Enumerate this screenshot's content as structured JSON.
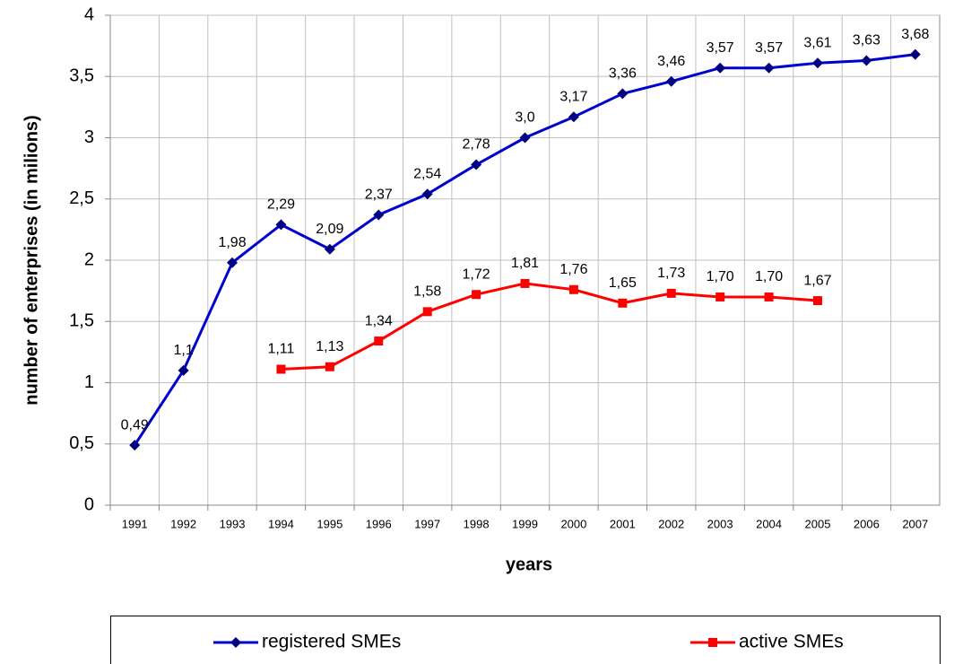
{
  "chart_data": {
    "type": "line",
    "x_label": "years",
    "y_label": "number of enterprises (in milions)",
    "categories": [
      "1991",
      "1992",
      "1993",
      "1994",
      "1995",
      "1996",
      "1997",
      "1998",
      "1999",
      "2000",
      "2001",
      "2002",
      "2003",
      "2004",
      "2005",
      "2006",
      "2007"
    ],
    "series": [
      {
        "name": "registered SMEs",
        "color": "#0000cc",
        "marker": "diamond",
        "marker_color": "#000080",
        "values": [
          0.49,
          1.1,
          1.98,
          2.29,
          2.09,
          2.37,
          2.54,
          2.78,
          3.0,
          3.17,
          3.36,
          3.46,
          3.57,
          3.57,
          3.61,
          3.63,
          3.68
        ],
        "value_labels": [
          "0,49",
          "1,1",
          "1,98",
          "2,29",
          "2,09",
          "2,37",
          "2,54",
          "2,78",
          "3,0",
          "3,17",
          "3,36",
          "3,46",
          "3,57",
          "3,57",
          "3,61",
          "3,63",
          "3,68"
        ]
      },
      {
        "name": "active SMEs",
        "color": "#ff0000",
        "marker": "square",
        "marker_color": "#ff0000",
        "values": [
          null,
          null,
          null,
          1.11,
          1.13,
          1.34,
          1.58,
          1.72,
          1.81,
          1.76,
          1.65,
          1.73,
          1.7,
          1.7,
          1.67,
          null,
          null
        ],
        "value_labels": [
          null,
          null,
          null,
          "1,11",
          "1,13",
          "1,34",
          "1,58",
          "1,72",
          "1,81",
          "1,76",
          "1,65",
          "1,73",
          "1,70",
          "1,70",
          "1,67",
          null,
          null
        ]
      }
    ],
    "ylim": [
      0,
      4
    ],
    "yticks": [
      0,
      {
        "value": 0.5,
        "label": "0,5"
      },
      1,
      {
        "value": 1.5,
        "label": "1,5"
      },
      2,
      {
        "value": 2.5,
        "label": "2,5"
      },
      3,
      {
        "value": 3.5,
        "label": "3,5"
      },
      4
    ],
    "grid": true,
    "legend": "bottom"
  }
}
